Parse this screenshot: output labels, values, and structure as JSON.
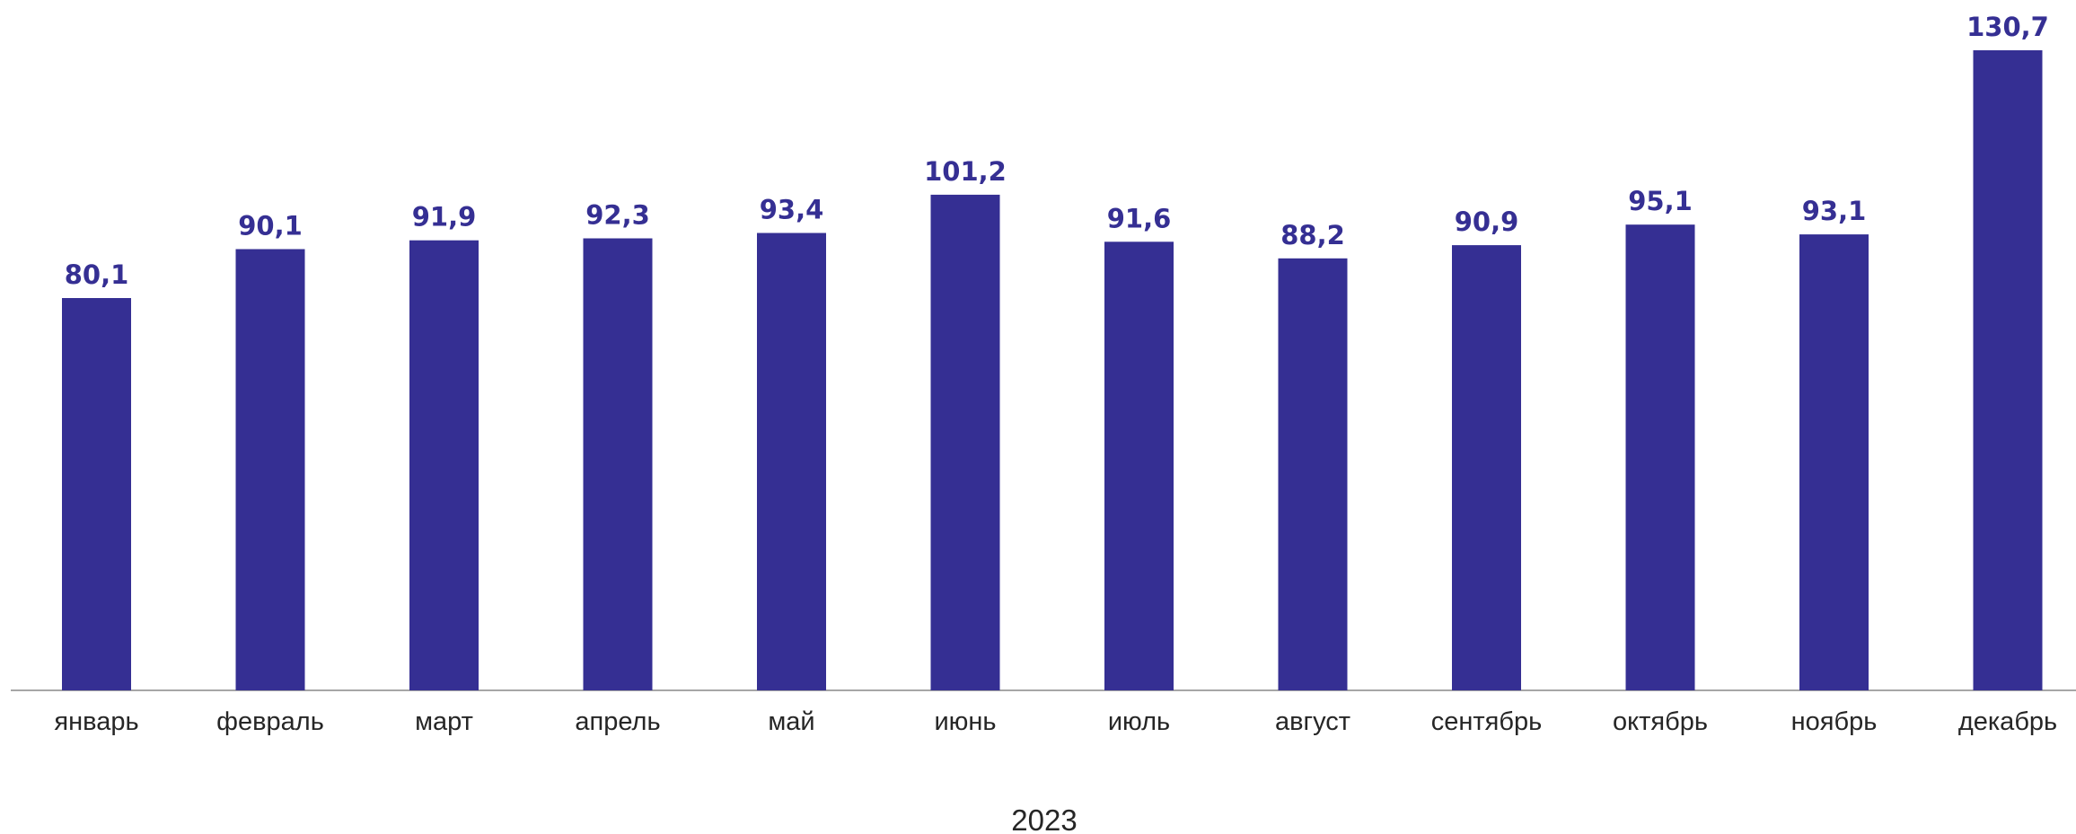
{
  "chart_data": {
    "type": "bar",
    "categories": [
      "январь",
      "февраль",
      "март",
      "апрель",
      "май",
      "июнь",
      "июль",
      "август",
      "сентябрь",
      "октябрь",
      "ноябрь",
      "декабрь"
    ],
    "values": [
      80.1,
      90.1,
      91.9,
      92.3,
      93.4,
      101.2,
      91.6,
      88.2,
      90.9,
      95.1,
      93.1,
      130.7
    ],
    "value_labels": [
      "80,1",
      "90,1",
      "91,9",
      "92,3",
      "93,4",
      "101,2",
      "91,6",
      "88,2",
      "90,9",
      "95,1",
      "93,1",
      "130,7"
    ],
    "title": "",
    "xlabel": "2023",
    "ylabel": "",
    "ylim": [
      0,
      130.7
    ],
    "grid": false,
    "legend": "none",
    "colors": {
      "bar": "#352F93",
      "label": "#352F93",
      "axis": "#A6A6A6"
    }
  }
}
